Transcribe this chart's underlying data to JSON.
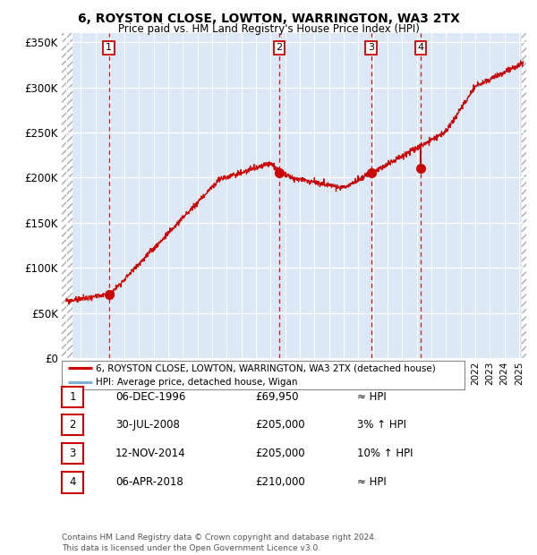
{
  "title1": "6, ROYSTON CLOSE, LOWTON, WARRINGTON, WA3 2TX",
  "title2": "Price paid vs. HM Land Registry's House Price Index (HPI)",
  "background_color": "#dce8f5",
  "hatch_color": "#cccccc",
  "grid_color": "#ffffff",
  "red_line_color": "#cc0000",
  "blue_line_color": "#80b0d8",
  "sale_points": [
    {
      "date_num": 1996.93,
      "value": 69950,
      "label": "1"
    },
    {
      "date_num": 2008.58,
      "value": 205000,
      "label": "2"
    },
    {
      "date_num": 2014.87,
      "value": 205000,
      "label": "3"
    },
    {
      "date_num": 2018.27,
      "value": 210000,
      "label": "4"
    }
  ],
  "vline_dates": [
    1996.93,
    2008.58,
    2014.87,
    2018.27
  ],
  "xmin": 1993.7,
  "xmax": 2025.5,
  "ymin": 0,
  "ymax": 360000,
  "yticks": [
    0,
    50000,
    100000,
    150000,
    200000,
    250000,
    300000,
    350000
  ],
  "ytick_labels": [
    "£0",
    "£50K",
    "£100K",
    "£150K",
    "£200K",
    "£250K",
    "£300K",
    "£350K"
  ],
  "legend_line1": "6, ROYSTON CLOSE, LOWTON, WARRINGTON, WA3 2TX (detached house)",
  "legend_line2": "HPI: Average price, detached house, Wigan",
  "table_rows": [
    [
      "1",
      "06-DEC-1996",
      "£69,950",
      "≈ HPI"
    ],
    [
      "2",
      "30-JUL-2008",
      "£205,000",
      "3% ↑ HPI"
    ],
    [
      "3",
      "12-NOV-2014",
      "£205,000",
      "10% ↑ HPI"
    ],
    [
      "4",
      "06-APR-2018",
      "£210,000",
      "≈ HPI"
    ]
  ],
  "footnote": "Contains HM Land Registry data © Crown copyright and database right 2024.\nThis data is licensed under the Open Government Licence v3.0."
}
